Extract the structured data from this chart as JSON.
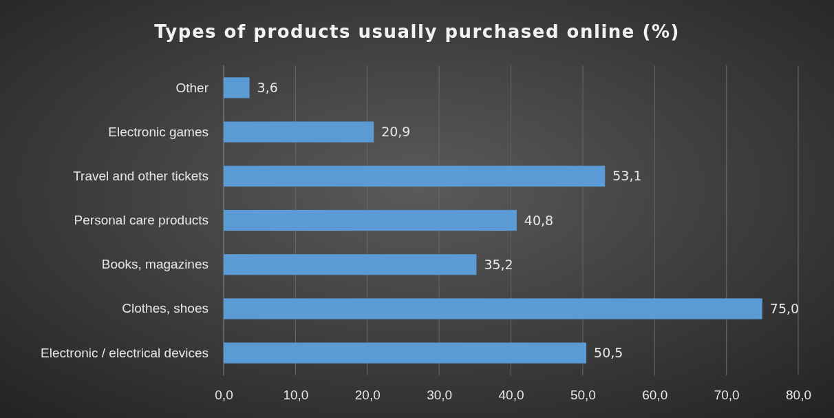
{
  "chart_data": {
    "type": "bar",
    "orientation": "horizontal",
    "title": "Types of products usually purchased online (%)",
    "categories": [
      "Other",
      "Electronic games",
      "Travel and other tickets",
      "Personal care products",
      "Books, magazines",
      "Clothes, shoes",
      "Electronic / electrical devices"
    ],
    "values": [
      3.6,
      20.9,
      53.1,
      40.8,
      35.2,
      75.0,
      50.5
    ],
    "value_labels": [
      "3,6",
      "20,9",
      "53,1",
      "40,8",
      "35,2",
      "75,0",
      "50,5"
    ],
    "color": "#5b9bd5",
    "xlim": [
      0,
      80
    ],
    "xticks": [
      {
        "value": 0,
        "label": "0,0"
      },
      {
        "value": 10,
        "label": "10,0"
      },
      {
        "value": 20,
        "label": "20,0"
      },
      {
        "value": 30,
        "label": "30,0"
      },
      {
        "value": 40,
        "label": "40,0"
      },
      {
        "value": 50,
        "label": "50,0"
      },
      {
        "value": 60,
        "label": "60,0"
      },
      {
        "value": 70,
        "label": "70,0"
      },
      {
        "value": 80,
        "label": "80,0"
      }
    ],
    "grid": "x"
  }
}
